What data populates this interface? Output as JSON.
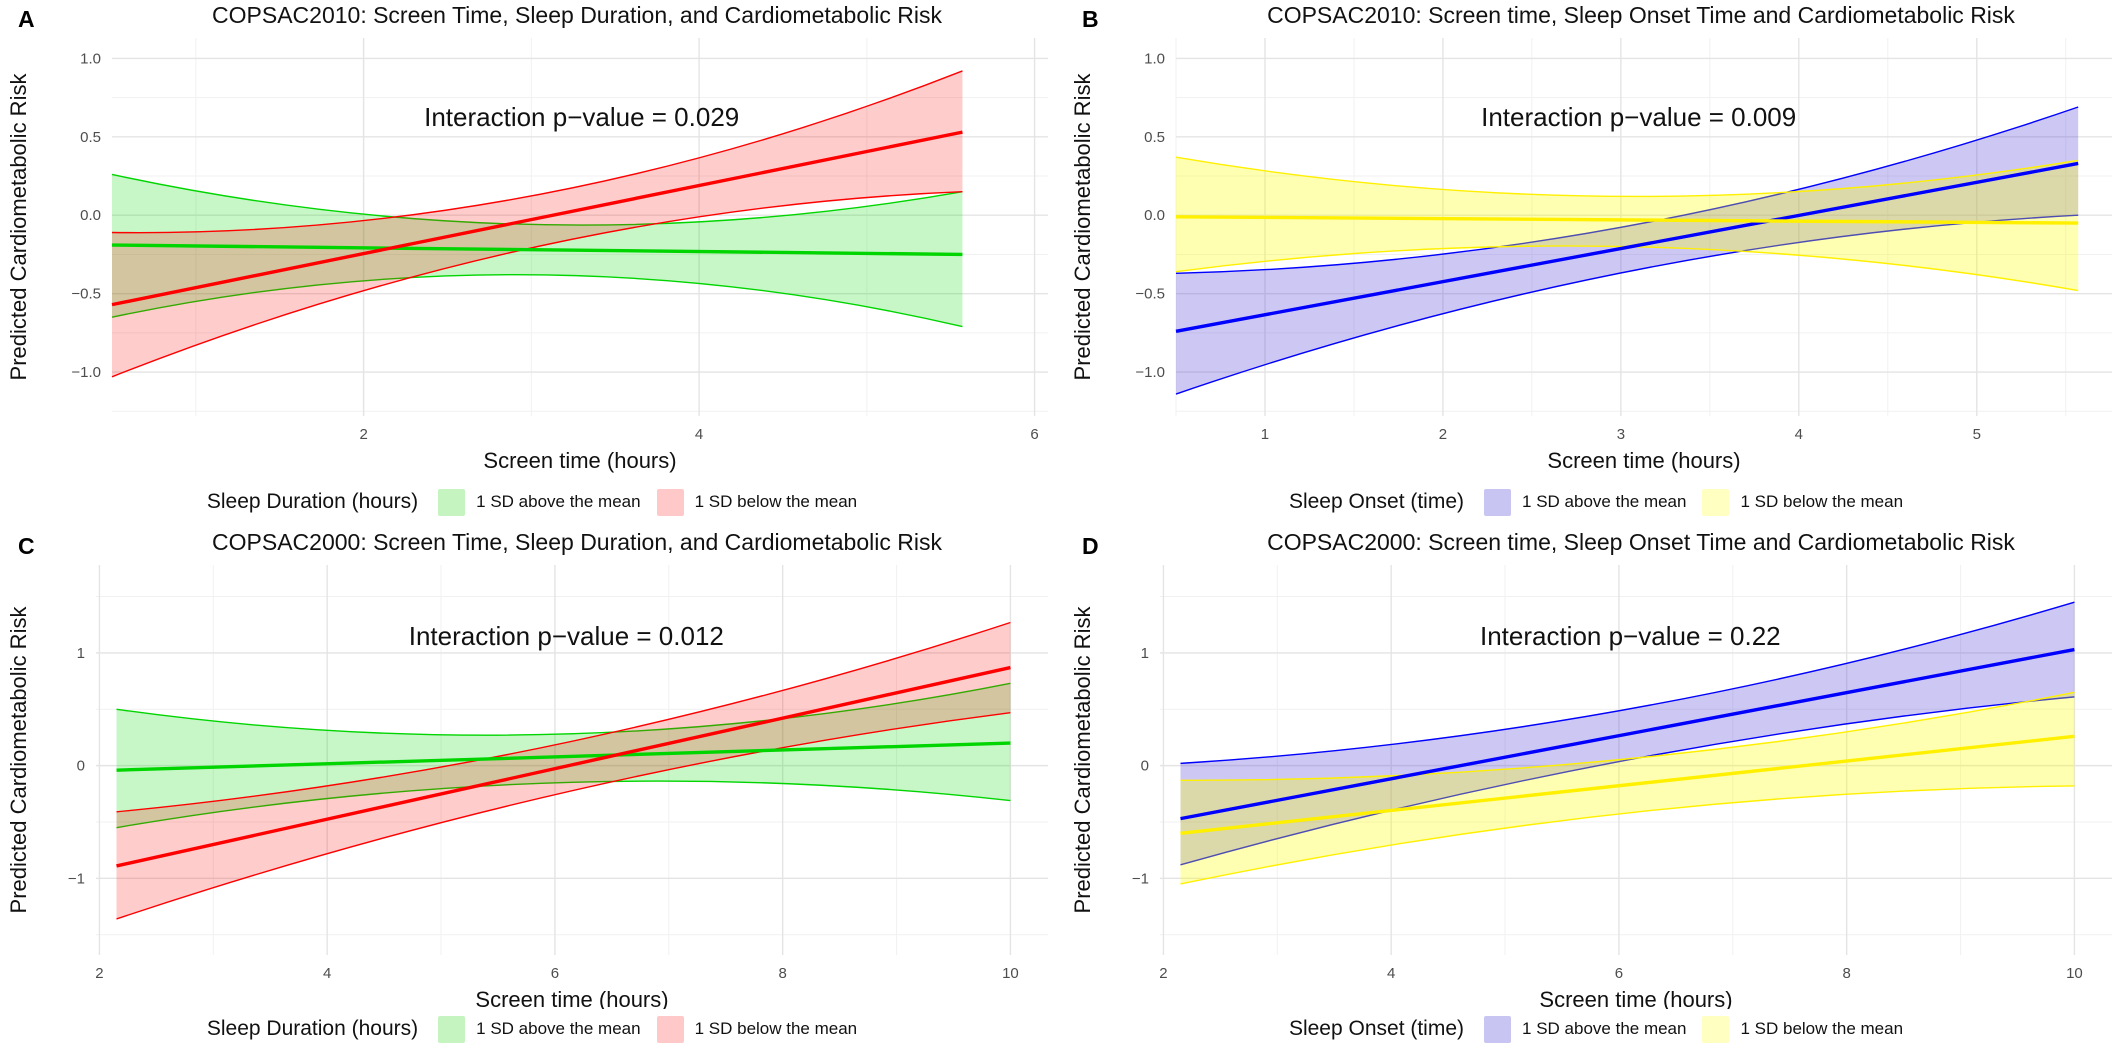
{
  "figure": {
    "background": "#FFFFFF",
    "grid": {
      "major_color": "#E4E4E4",
      "minor_color": "#F1F1F1",
      "grid_on": true
    }
  },
  "chart_data": [
    {
      "type": "line",
      "label": "A",
      "title": "COPSAC2010: Screen Time, Sleep Duration, and Cardiometabolic Risk",
      "annotation": {
        "text": "Interaction p−value = 0.029",
        "x": 3.3,
        "y": 0.57
      },
      "x": {
        "label": "Screen time (hours)",
        "domain": [
          0.5,
          6.08
        ],
        "ticks": [
          2,
          4,
          6
        ],
        "tick_labels": [
          "2",
          "4",
          "6"
        ],
        "minor": [
          1,
          3,
          5
        ],
        "data_range": [
          0.5,
          5.57
        ]
      },
      "y": {
        "label": "Predicted Cardiometabolic Risk",
        "domain": [
          -1.28,
          1.13
        ],
        "ticks": [
          1.0,
          0.5,
          0.0,
          -0.5,
          -1.0
        ],
        "tick_labels": [
          "1.0",
          "0.5",
          "0.0",
          "−0.5",
          "−1.0"
        ],
        "minor": [
          0.75,
          0.25,
          -0.25,
          -0.75,
          -1.25
        ]
      },
      "series": [
        {
          "name": "1 SD above the mean",
          "line_color": "#00D500",
          "fill": "rgba(0,220,0,0.22)",
          "line": [
            -0.19,
            -0.25
          ],
          "ci_upper": [
            0.26,
            -0.06,
            0.15
          ],
          "ci_lower": [
            -0.65,
            -0.38,
            -0.71
          ]
        },
        {
          "name": "1 SD below the mean",
          "line_color": "#FF0000",
          "fill": "rgba(255,0,0,0.20)",
          "line": [
            -0.57,
            0.53
          ],
          "ci_upper": [
            -0.11,
            0.13,
            0.92
          ],
          "ci_lower": [
            -1.03,
            -0.2,
            0.15
          ]
        }
      ],
      "legend": {
        "title": "Sleep Duration (hours)",
        "items": [
          {
            "label": "1 SD above the mean",
            "swatch": "#C6F4C0"
          },
          {
            "label": "1 SD below the mean",
            "swatch": "#FFC9C9"
          }
        ]
      }
    },
    {
      "type": "line",
      "label": "B",
      "title": "COPSAC2010: Screen time, Sleep Onset Time and Cardiometabolic Risk",
      "annotation": {
        "text": "Interaction p−value = 0.009",
        "x": 3.1,
        "y": 0.57
      },
      "x": {
        "label": "Screen time (hours)",
        "domain": [
          0.5,
          5.76
        ],
        "ticks": [
          1,
          2,
          3,
          4,
          5
        ],
        "tick_labels": [
          "1",
          "2",
          "3",
          "4",
          "5"
        ],
        "minor": [
          0.5,
          1.5,
          2.5,
          3.5,
          4.5,
          5.5
        ],
        "data_range": [
          0.5,
          5.57
        ]
      },
      "y": {
        "label": "Predicted Cardiometabolic Risk",
        "domain": [
          -1.28,
          1.13
        ],
        "ticks": [
          1.0,
          0.5,
          0.0,
          -0.5,
          -1.0
        ],
        "tick_labels": [
          "1.0",
          "0.5",
          "0.0",
          "−0.5",
          "−1.0"
        ],
        "minor": [
          0.75,
          0.25,
          -0.25,
          -0.75,
          -1.25
        ]
      },
      "series": [
        {
          "name": "1 SD above the mean",
          "line_color": "#0000FF",
          "fill": "rgba(85,70,215,0.30)",
          "line": [
            -0.74,
            0.33
          ],
          "ci_upper": [
            -0.37,
            -0.07,
            0.69
          ],
          "ci_lower": [
            -1.14,
            -0.36,
            0.0
          ]
        },
        {
          "name": "1 SD below the mean",
          "line_color": "#FFF000",
          "fill": "rgba(255,255,0,0.30)",
          "line": [
            -0.01,
            -0.05
          ],
          "ci_upper": [
            0.37,
            0.12,
            0.35
          ],
          "ci_lower": [
            -0.36,
            -0.2,
            -0.48
          ]
        }
      ],
      "legend": {
        "title": "Sleep Onset (time)",
        "items": [
          {
            "label": "1 SD above the mean",
            "swatch": "#C9C5F2"
          },
          {
            "label": "1 SD below the mean",
            "swatch": "#FFFFC2"
          }
        ]
      }
    },
    {
      "type": "line",
      "label": "C",
      "title": "COPSAC2000: Screen Time, Sleep Duration, and Cardiometabolic Risk",
      "annotation": {
        "text": "Interaction p−value = 0.012",
        "x": 6.1,
        "y": 1.07
      },
      "x": {
        "label": "Screen time (hours)",
        "domain": [
          1.97,
          10.33
        ],
        "ticks": [
          2,
          4,
          6,
          8,
          10
        ],
        "tick_labels": [
          "2",
          "4",
          "6",
          "8",
          "10"
        ],
        "minor": [
          3,
          5,
          7,
          9
        ],
        "data_range": [
          2.15,
          10
        ]
      },
      "y": {
        "label": "Predicted Cardiometabolic Risk",
        "domain": [
          -1.68,
          1.78
        ],
        "ticks": [
          1,
          0,
          -1
        ],
        "tick_labels": [
          "1",
          "0",
          "−1"
        ],
        "minor": [
          1.5,
          0.5,
          -0.5,
          -1.5
        ]
      },
      "series": [
        {
          "name": "1 SD above the mean",
          "line_color": "#00D500",
          "fill": "rgba(0,220,0,0.22)",
          "line": [
            -0.04,
            0.2
          ],
          "ci_upper": [
            0.5,
            0.28,
            0.73
          ],
          "ci_lower": [
            -0.55,
            -0.15,
            -0.31
          ]
        },
        {
          "name": "1 SD below the mean",
          "line_color": "#FF0000",
          "fill": "rgba(255,0,0,0.20)",
          "line": [
            -0.89,
            0.87
          ],
          "ci_upper": [
            -0.41,
            0.2,
            1.27
          ],
          "ci_lower": [
            -1.36,
            -0.24,
            0.47
          ]
        }
      ],
      "legend": {
        "title": "Sleep Duration (hours)",
        "items": [
          {
            "label": "1 SD above the mean",
            "swatch": "#C6F4C0"
          },
          {
            "label": "1 SD below the mean",
            "swatch": "#FFC9C9"
          }
        ]
      }
    },
    {
      "type": "line",
      "label": "D",
      "title": "COPSAC2000: Screen time, Sleep Onset Time and Cardiometabolic Risk",
      "annotation": {
        "text": "Interaction p−value = 0.22",
        "x": 6.1,
        "y": 1.07
      },
      "x": {
        "label": "Screen time (hours)",
        "domain": [
          1.97,
          10.33
        ],
        "ticks": [
          2,
          4,
          6,
          8,
          10
        ],
        "tick_labels": [
          "2",
          "4",
          "6",
          "8",
          "10"
        ],
        "minor": [
          3,
          5,
          7,
          9
        ],
        "data_range": [
          2.15,
          10
        ]
      },
      "y": {
        "label": "Predicted Cardiometabolic Risk",
        "domain": [
          -1.68,
          1.78
        ],
        "ticks": [
          1,
          0,
          -1
        ],
        "tick_labels": [
          "1",
          "0",
          "−1"
        ],
        "minor": [
          1.5,
          0.5,
          -0.5,
          -1.5
        ]
      },
      "series": [
        {
          "name": "1 SD above the mean",
          "line_color": "#0000FF",
          "fill": "rgba(85,70,215,0.30)",
          "line": [
            -0.47,
            1.03
          ],
          "ci_upper": [
            0.02,
            0.5,
            1.45
          ],
          "ci_lower": [
            -0.88,
            0.05,
            0.61
          ]
        },
        {
          "name": "1 SD below the mean",
          "line_color": "#FFF000",
          "fill": "rgba(255,255,0,0.30)",
          "line": [
            -0.6,
            0.26
          ],
          "ci_upper": [
            -0.13,
            0.06,
            0.65
          ],
          "ci_lower": [
            -1.05,
            -0.42,
            -0.18
          ]
        }
      ],
      "legend": {
        "title": "Sleep Onset (time)",
        "items": [
          {
            "label": "1 SD above the mean",
            "swatch": "#C9C5F2"
          },
          {
            "label": "1 SD below the mean",
            "swatch": "#FFFFC2"
          }
        ]
      }
    }
  ]
}
